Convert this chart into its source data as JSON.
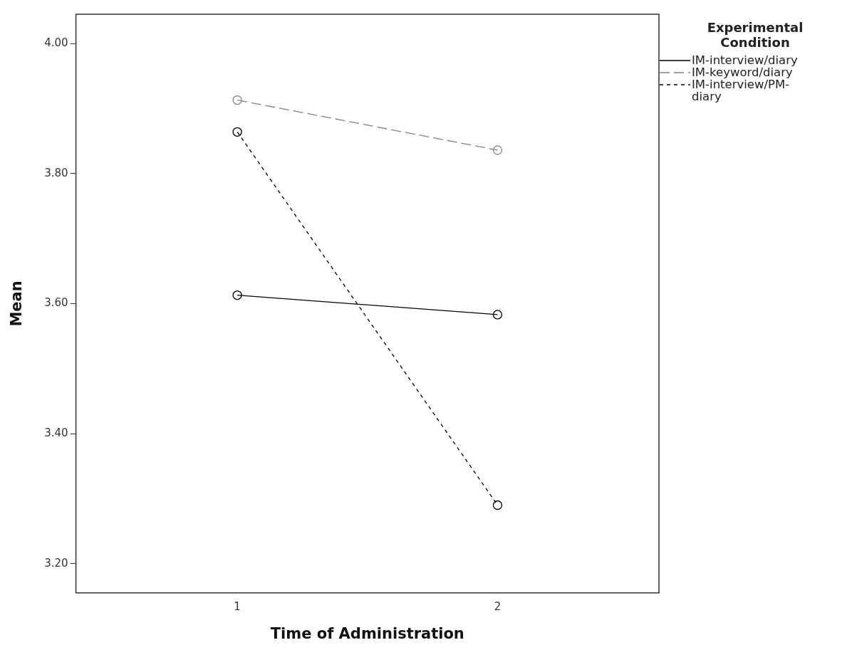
{
  "chart_data": {
    "type": "line",
    "xlabel": "Time of Administration",
    "ylabel": "Mean",
    "legend_title": "Experimental Condition",
    "x": [
      1,
      2
    ],
    "xlim": [
      0.38,
      2.62
    ],
    "xticks": [
      1,
      2
    ],
    "ylim": [
      3.155,
      4.045
    ],
    "yticks": [
      {
        "value": 3.2,
        "label": "3.20"
      },
      {
        "value": 3.4,
        "label": "3.40"
      },
      {
        "value": 3.6,
        "label": "3.60"
      },
      {
        "value": 3.8,
        "label": "3.80"
      },
      {
        "value": 4.0,
        "label": "4.00"
      }
    ],
    "grid": false,
    "legend": "top right",
    "marker": "circle",
    "series": [
      {
        "name": "IM-interview/diary",
        "color": "#000000",
        "line_style": "solid",
        "values": [
          3.613,
          3.583
        ]
      },
      {
        "name": "IM-keyword/diary",
        "color": "#808080",
        "line_style": "dashed",
        "values": [
          3.913,
          3.836
        ]
      },
      {
        "name": "IM-interview/PM-diary",
        "color": "#000000",
        "line_style": "dotted",
        "values": [
          3.864,
          3.29
        ]
      }
    ]
  }
}
